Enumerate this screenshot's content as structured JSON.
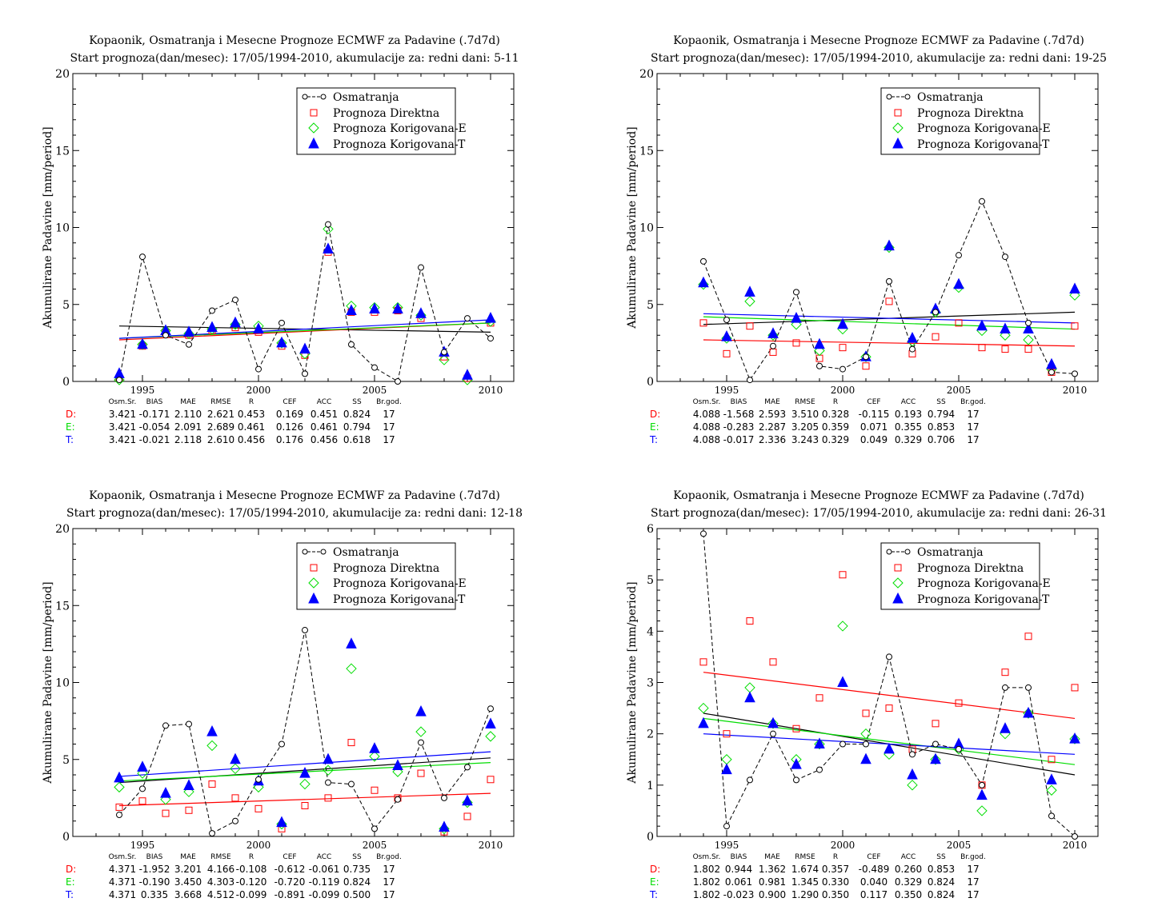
{
  "legend_labels": {
    "obs": "Osmatranja",
    "direct": "Prognoza Direktna",
    "korE": "Prognoza Korigovana-E",
    "korT": "Prognoza Korigovana-T"
  },
  "stats_headers": [
    "Osm.Sr.",
    "BIAS",
    "MAE",
    "RMSE",
    "R",
    "CEF",
    "ACC",
    "SS",
    "Br.god."
  ],
  "colors": {
    "obs": "#000000",
    "direct": "#ff0000",
    "korE": "#00dd00",
    "korT": "#0000ff"
  },
  "chart_data": [
    {
      "type": "scatter",
      "title": "Kopaonik, Osmatranja i Mesecne Prognoze ECMWF za Padavine (.7d7d)",
      "subtitle": "Start prognoza(dan/mesec): 17/05/1994-2010, akumulacije za: redni dani: 5-11",
      "ylabel": "Akumulirane Padavine [mm/period]",
      "xlabel": "",
      "xlim": [
        1992.0,
        2011.0
      ],
      "ylim": [
        0,
        20
      ],
      "yticks": [
        0,
        5,
        10,
        15,
        20
      ],
      "xticks": [
        1995,
        2000,
        2005,
        2010
      ],
      "legend_position": "top-right",
      "years": [
        1994,
        1995,
        1996,
        1997,
        1998,
        1999,
        2000,
        2001,
        2002,
        2003,
        2004,
        2005,
        2006,
        2007,
        2008,
        2009,
        2010
      ],
      "series": [
        {
          "name": "Osmatranja",
          "values": [
            0.1,
            8.1,
            3.0,
            2.4,
            4.6,
            5.3,
            0.8,
            3.8,
            0.5,
            10.2,
            2.4,
            0.9,
            0.0,
            7.4,
            1.9,
            4.1,
            2.8
          ]
        },
        {
          "name": "Prognoza Direktna",
          "values": [
            0.2,
            2.3,
            3.2,
            3.0,
            3.3,
            3.5,
            3.2,
            2.3,
            1.7,
            8.4,
            4.5,
            4.5,
            4.6,
            4.1,
            1.6,
            0.2,
            3.8
          ]
        },
        {
          "name": "Prognoza Korigovana-E",
          "values": [
            0.1,
            2.4,
            3.3,
            3.1,
            3.4,
            3.7,
            3.6,
            2.5,
            1.8,
            9.9,
            4.9,
            4.8,
            4.8,
            4.3,
            1.4,
            0.1,
            3.9
          ]
        },
        {
          "name": "Prognoza Korigovana-T",
          "values": [
            0.5,
            2.4,
            3.3,
            3.2,
            3.5,
            3.8,
            3.4,
            2.5,
            2.1,
            8.6,
            4.6,
            4.7,
            4.7,
            4.4,
            1.9,
            0.4,
            4.1
          ]
        }
      ],
      "trends": {
        "obs": [
          3.6,
          3.2
        ],
        "direct": [
          2.7,
          3.8
        ],
        "korE": [
          2.8,
          3.8
        ],
        "korT": [
          2.8,
          4.0
        ]
      },
      "stats": [
        {
          "label": "D:",
          "values": [
            "3.421",
            "-0.171",
            "2.110",
            "2.621",
            "0.453",
            "0.169",
            "0.451",
            "0.824",
            "17"
          ]
        },
        {
          "label": "E:",
          "values": [
            "3.421",
            "-0.054",
            "2.091",
            "2.689",
            "0.461",
            "0.126",
            "0.461",
            "0.794",
            "17"
          ]
        },
        {
          "label": "T:",
          "values": [
            "3.421",
            "-0.021",
            "2.118",
            "2.610",
            "0.456",
            "0.176",
            "0.456",
            "0.618",
            "17"
          ]
        }
      ]
    },
    {
      "type": "scatter",
      "title": "Kopaonik, Osmatranja i Mesecne Prognoze ECMWF za Padavine (.7d7d)",
      "subtitle": "Start prognoza(dan/mesec): 17/05/1994-2010, akumulacije za: redni dani: 19-25",
      "ylabel": "Akumulirane Padavine [mm/period]",
      "xlabel": "",
      "xlim": [
        1992.0,
        2011.0
      ],
      "ylim": [
        0,
        20
      ],
      "yticks": [
        0,
        5,
        10,
        15,
        20
      ],
      "xticks": [
        1995,
        2000,
        2005,
        2010
      ],
      "legend_position": "top-right",
      "years": [
        1994,
        1995,
        1996,
        1997,
        1998,
        1999,
        2000,
        2001,
        2002,
        2003,
        2004,
        2005,
        2006,
        2007,
        2008,
        2009,
        2010
      ],
      "series": [
        {
          "name": "Osmatranja",
          "values": [
            7.8,
            4.0,
            0.1,
            2.3,
            5.8,
            1.0,
            0.8,
            1.6,
            6.5,
            2.1,
            4.5,
            8.2,
            11.7,
            8.1,
            3.8,
            0.6,
            0.5
          ]
        },
        {
          "name": "Prognoza Direktna",
          "values": [
            3.8,
            1.8,
            3.6,
            1.9,
            2.5,
            1.5,
            2.2,
            1.0,
            5.2,
            1.8,
            2.9,
            3.8,
            2.2,
            2.1,
            2.1,
            0.6,
            3.6
          ]
        },
        {
          "name": "Prognoza Korigovana-E",
          "values": [
            6.3,
            2.8,
            5.2,
            3.0,
            3.7,
            2.0,
            3.4,
            1.6,
            8.7,
            2.6,
            4.5,
            6.1,
            3.3,
            3.0,
            2.7,
            0.8,
            5.6
          ]
        },
        {
          "name": "Prognoza Korigovana-T",
          "values": [
            6.4,
            2.9,
            5.8,
            3.1,
            4.1,
            2.4,
            3.7,
            1.6,
            8.8,
            2.8,
            4.7,
            6.3,
            3.6,
            3.4,
            3.4,
            1.1,
            6.0
          ]
        }
      ],
      "trends": {
        "obs": [
          3.7,
          4.5
        ],
        "direct": [
          2.7,
          2.3
        ],
        "korE": [
          4.2,
          3.4
        ],
        "korT": [
          4.4,
          3.8
        ]
      },
      "stats": [
        {
          "label": "D:",
          "values": [
            "4.088",
            "-1.568",
            "2.593",
            "3.510",
            "0.328",
            "-0.115",
            "0.193",
            "0.794",
            "17"
          ]
        },
        {
          "label": "E:",
          "values": [
            "4.088",
            "-0.283",
            "2.287",
            "3.205",
            "0.359",
            "0.071",
            "0.355",
            "0.853",
            "17"
          ]
        },
        {
          "label": "T:",
          "values": [
            "4.088",
            "-0.017",
            "2.336",
            "3.243",
            "0.329",
            "0.049",
            "0.329",
            "0.706",
            "17"
          ]
        }
      ]
    },
    {
      "type": "scatter",
      "title": "Kopaonik, Osmatranja i Mesecne Prognoze ECMWF za Padavine (.7d7d)",
      "subtitle": "Start prognoza(dan/mesec): 17/05/1994-2010, akumulacije za: redni dani: 12-18",
      "ylabel": "Akumulirane Padavine [mm/period]",
      "xlabel": "",
      "xlim": [
        1992.0,
        2011.0
      ],
      "ylim": [
        0,
        20
      ],
      "yticks": [
        0,
        5,
        10,
        15,
        20
      ],
      "xticks": [
        1995,
        2000,
        2005,
        2010
      ],
      "legend_position": "top-right",
      "years": [
        1994,
        1995,
        1996,
        1997,
        1998,
        1999,
        2000,
        2001,
        2002,
        2003,
        2004,
        2005,
        2006,
        2007,
        2008,
        2009,
        2010
      ],
      "series": [
        {
          "name": "Osmatranja",
          "values": [
            1.4,
            3.1,
            7.2,
            7.3,
            0.2,
            1.0,
            3.7,
            6.0,
            13.4,
            3.5,
            3.4,
            0.5,
            2.4,
            6.1,
            2.5,
            4.5,
            8.3
          ]
        },
        {
          "name": "Prognoza Direktna",
          "values": [
            1.9,
            2.3,
            1.5,
            1.7,
            3.4,
            2.5,
            1.8,
            0.5,
            2.0,
            2.5,
            6.1,
            3.0,
            2.5,
            4.1,
            0.3,
            1.3,
            3.7
          ]
        },
        {
          "name": "Prognoza Korigovana-E",
          "values": [
            3.2,
            4.1,
            2.4,
            2.9,
            5.9,
            4.4,
            3.2,
            0.8,
            3.4,
            4.3,
            10.9,
            5.2,
            4.2,
            6.8,
            0.5,
            2.2,
            6.5
          ]
        },
        {
          "name": "Prognoza Korigovana-T",
          "values": [
            3.8,
            4.5,
            2.8,
            3.3,
            6.8,
            5.0,
            3.6,
            0.9,
            4.1,
            5.0,
            12.5,
            5.7,
            4.6,
            8.1,
            0.6,
            2.3,
            7.3
          ]
        }
      ],
      "trends": {
        "obs": [
          3.5,
          5.1
        ],
        "direct": [
          2.0,
          2.8
        ],
        "korE": [
          3.6,
          4.8
        ],
        "korT": [
          3.9,
          5.5
        ]
      },
      "stats": [
        {
          "label": "D:",
          "values": [
            "4.371",
            "-1.952",
            "3.201",
            "4.166",
            "-0.108",
            "-0.612",
            "-0.061",
            "0.735",
            "17"
          ]
        },
        {
          "label": "E:",
          "values": [
            "4.371",
            "-0.190",
            "3.450",
            "4.303",
            "-0.120",
            "-0.720",
            "-0.119",
            "0.824",
            "17"
          ]
        },
        {
          "label": "T:",
          "values": [
            "4.371",
            "0.335",
            "3.668",
            "4.512",
            "-0.099",
            "-0.891",
            "-0.099",
            "0.500",
            "17"
          ]
        }
      ]
    },
    {
      "type": "scatter",
      "title": "Kopaonik, Osmatranja i Mesecne Prognoze ECMWF za Padavine (.7d7d)",
      "subtitle": "Start prognoza(dan/mesec): 17/05/1994-2010, akumulacije za: redni dani: 26-31",
      "ylabel": "Akumulirane Padavine [mm/period]",
      "xlabel": "",
      "xlim": [
        1992.0,
        2011.0
      ],
      "ylim": [
        0,
        6
      ],
      "yticks": [
        0,
        1,
        2,
        3,
        4,
        5,
        6
      ],
      "xticks": [
        1995,
        2000,
        2005,
        2010
      ],
      "legend_position": "top-right",
      "years": [
        1994,
        1995,
        1996,
        1997,
        1998,
        1999,
        2000,
        2001,
        2002,
        2003,
        2004,
        2005,
        2006,
        2007,
        2008,
        2009,
        2010
      ],
      "series": [
        {
          "name": "Osmatranja",
          "values": [
            5.9,
            0.2,
            1.1,
            2.0,
            1.1,
            1.3,
            1.8,
            1.8,
            3.5,
            1.6,
            1.8,
            1.7,
            1.0,
            2.9,
            2.9,
            0.4,
            0.0
          ]
        },
        {
          "name": "Prognoza Direktna",
          "values": [
            3.4,
            2.0,
            4.2,
            3.4,
            2.1,
            2.7,
            5.1,
            2.4,
            2.5,
            1.7,
            2.2,
            2.6,
            1.0,
            3.2,
            3.9,
            1.5,
            2.9
          ]
        },
        {
          "name": "Prognoza Korigovana-E",
          "values": [
            2.5,
            1.5,
            2.9,
            2.2,
            1.5,
            1.8,
            4.1,
            2.0,
            1.6,
            1.0,
            1.5,
            1.7,
            0.5,
            2.0,
            2.4,
            0.9,
            1.9
          ]
        },
        {
          "name": "Prognoza Korigovana-T",
          "values": [
            2.2,
            1.3,
            2.7,
            2.2,
            1.4,
            1.8,
            3.0,
            1.5,
            1.7,
            1.2,
            1.5,
            1.8,
            0.8,
            2.1,
            2.4,
            1.1,
            1.9
          ]
        }
      ],
      "trends": {
        "obs": [
          2.4,
          1.2
        ],
        "direct": [
          3.2,
          2.3
        ],
        "korE": [
          2.3,
          1.4
        ],
        "korT": [
          2.0,
          1.6
        ]
      },
      "stats": [
        {
          "label": "D:",
          "values": [
            "1.802",
            "0.944",
            "1.362",
            "1.674",
            "0.357",
            "-0.489",
            "0.260",
            "0.853",
            "17"
          ]
        },
        {
          "label": "E:",
          "values": [
            "1.802",
            "0.061",
            "0.981",
            "1.345",
            "0.330",
            "0.040",
            "0.329",
            "0.824",
            "17"
          ]
        },
        {
          "label": "T:",
          "values": [
            "1.802",
            "-0.023",
            "0.900",
            "1.290",
            "0.350",
            "0.117",
            "0.350",
            "0.824",
            "17"
          ]
        }
      ]
    }
  ]
}
